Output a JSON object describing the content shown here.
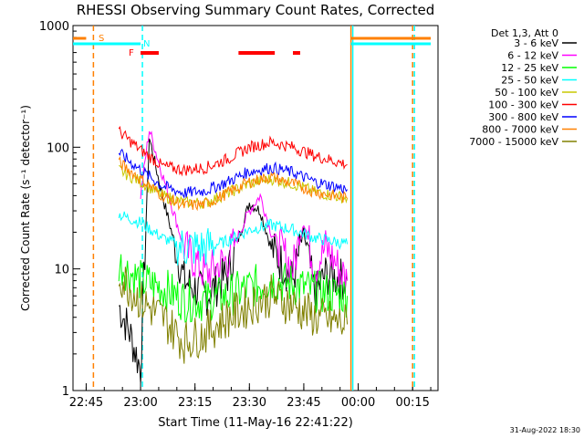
{
  "chart_data": {
    "type": "line",
    "title": "RHESSI Observing Summary Count Rates, Corrected",
    "xlabel": "Start Time (11-May-16 22:41:22)",
    "ylabel": "Corrected Count Rate (s⁻¹ detector⁻¹)",
    "yscale": "log",
    "ylim": [
      1,
      1000
    ],
    "xlim": [
      "22:41:22",
      "00:22:00"
    ],
    "x_ticks": [
      "22:45",
      "23:00",
      "23:15",
      "23:30",
      "23:45",
      "00:00",
      "00:15"
    ],
    "y_ticks": [
      "1",
      "10",
      "100",
      "1000"
    ],
    "footer": "31-Aug-2022 18:30",
    "legend_header": "Det 1,3, Att 0",
    "legend_position": "right",
    "markers": {
      "S": {
        "label": "S",
        "color": "#ff8000"
      },
      "N": {
        "label": "N",
        "color": "#00ffff"
      },
      "F": {
        "label": "F",
        "color": "#ff0000"
      }
    },
    "vertical_lines": [
      {
        "time": "22:47",
        "color": "#ff8000",
        "style": "dashed"
      },
      {
        "time": "23:00",
        "color": "#00ffff",
        "style": "dashed"
      },
      {
        "time": "23:58",
        "color": "#ff8000",
        "style": "solid"
      },
      {
        "time": "23:58",
        "color": "#00ffff",
        "style": "solid"
      },
      {
        "time": "00:15",
        "color": "#ff8000",
        "style": "dashed"
      },
      {
        "time": "00:15",
        "color": "#00ffff",
        "style": "dashed"
      }
    ],
    "flag_bars": [
      {
        "label": "S",
        "color": "#ff8000",
        "segments": [
          [
            "22:41",
            "22:45"
          ],
          [
            "23:58",
            "00:20"
          ]
        ]
      },
      {
        "label": "N",
        "color": "#00ffff",
        "segments": [
          [
            "22:41",
            "23:00"
          ],
          [
            "23:58",
            "00:20"
          ]
        ]
      },
      {
        "label": "F",
        "color": "#ff0000",
        "segments": [
          [
            "23:00",
            "23:05"
          ],
          [
            "23:27",
            "23:37"
          ],
          [
            "23:42",
            "23:44"
          ]
        ]
      }
    ],
    "series": [
      {
        "name": "3 - 6 keV",
        "color": "#000000",
        "values": [
          [
            22.9,
            5
          ],
          [
            22.95,
            3
          ],
          [
            23.0,
            1.5
          ],
          [
            23.04,
            120
          ],
          [
            23.1,
            40
          ],
          [
            23.2,
            8
          ],
          [
            23.3,
            6
          ],
          [
            23.4,
            9
          ],
          [
            23.5,
            35
          ],
          [
            23.55,
            30
          ],
          [
            23.6,
            15
          ],
          [
            23.7,
            8
          ],
          [
            23.75,
            20
          ],
          [
            23.8,
            6
          ],
          [
            23.85,
            9
          ],
          [
            23.95,
            8
          ]
        ]
      },
      {
        "name": "6 - 12 keV",
        "color": "#ff00ff",
        "values": [
          [
            23.0,
            40
          ],
          [
            23.04,
            140
          ],
          [
            23.1,
            60
          ],
          [
            23.2,
            15
          ],
          [
            23.3,
            9
          ],
          [
            23.4,
            12
          ],
          [
            23.5,
            30
          ],
          [
            23.55,
            40
          ],
          [
            23.6,
            20
          ],
          [
            23.7,
            10
          ],
          [
            23.75,
            25
          ],
          [
            23.8,
            10
          ],
          [
            23.85,
            15
          ],
          [
            23.95,
            8
          ]
        ]
      },
      {
        "name": "12 - 25 keV",
        "color": "#00ff00",
        "values": [
          [
            22.9,
            11
          ],
          [
            23.0,
            8
          ],
          [
            23.1,
            7
          ],
          [
            23.2,
            5.5
          ],
          [
            23.3,
            5.5
          ],
          [
            23.4,
            6
          ],
          [
            23.5,
            7
          ],
          [
            23.6,
            8
          ],
          [
            23.7,
            7.5
          ],
          [
            23.8,
            6.5
          ],
          [
            23.95,
            6
          ]
        ]
      },
      {
        "name": "25 - 50 keV",
        "color": "#00ffff",
        "values": [
          [
            22.9,
            28
          ],
          [
            23.0,
            24
          ],
          [
            23.1,
            18
          ],
          [
            23.2,
            15
          ],
          [
            23.3,
            15
          ],
          [
            23.4,
            17
          ],
          [
            23.5,
            21
          ],
          [
            23.6,
            23
          ],
          [
            23.7,
            21
          ],
          [
            23.8,
            18
          ],
          [
            23.95,
            16
          ]
        ]
      },
      {
        "name": "50 - 100 keV",
        "color": "#c8c800",
        "values": [
          [
            22.9,
            65
          ],
          [
            23.0,
            52
          ],
          [
            23.1,
            40
          ],
          [
            23.2,
            35
          ],
          [
            23.3,
            35
          ],
          [
            23.4,
            42
          ],
          [
            23.5,
            50
          ],
          [
            23.6,
            55
          ],
          [
            23.7,
            50
          ],
          [
            23.8,
            43
          ],
          [
            23.95,
            38
          ]
        ]
      },
      {
        "name": "100 - 300 keV",
        "color": "#ff0000",
        "values": [
          [
            22.9,
            135
          ],
          [
            23.0,
            95
          ],
          [
            23.1,
            70
          ],
          [
            23.2,
            65
          ],
          [
            23.3,
            68
          ],
          [
            23.4,
            80
          ],
          [
            23.5,
            100
          ],
          [
            23.6,
            110
          ],
          [
            23.7,
            100
          ],
          [
            23.8,
            85
          ],
          [
            23.95,
            72
          ]
        ]
      },
      {
        "name": "300 - 800 keV",
        "color": "#0000ff",
        "values": [
          [
            22.9,
            90
          ],
          [
            23.0,
            65
          ],
          [
            23.1,
            48
          ],
          [
            23.2,
            42
          ],
          [
            23.3,
            44
          ],
          [
            23.4,
            52
          ],
          [
            23.5,
            63
          ],
          [
            23.6,
            68
          ],
          [
            23.7,
            62
          ],
          [
            23.8,
            52
          ],
          [
            23.95,
            45
          ]
        ]
      },
      {
        "name": "800 - 7000 keV",
        "color": "#ff8000",
        "values": [
          [
            22.9,
            75
          ],
          [
            23.0,
            55
          ],
          [
            23.1,
            40
          ],
          [
            23.2,
            33
          ],
          [
            23.3,
            34
          ],
          [
            23.4,
            42
          ],
          [
            23.5,
            52
          ],
          [
            23.6,
            57
          ],
          [
            23.7,
            50
          ],
          [
            23.8,
            43
          ],
          [
            23.95,
            38
          ]
        ]
      },
      {
        "name": "7000 - 15000 keV",
        "color": "#808000",
        "values": [
          [
            22.9,
            9
          ],
          [
            23.0,
            5.5
          ],
          [
            23.1,
            4
          ],
          [
            23.2,
            2.5
          ],
          [
            23.3,
            3
          ],
          [
            23.4,
            4
          ],
          [
            23.5,
            5
          ],
          [
            23.6,
            6
          ],
          [
            23.7,
            5
          ],
          [
            23.8,
            4
          ],
          [
            23.95,
            3.5
          ]
        ]
      }
    ]
  }
}
